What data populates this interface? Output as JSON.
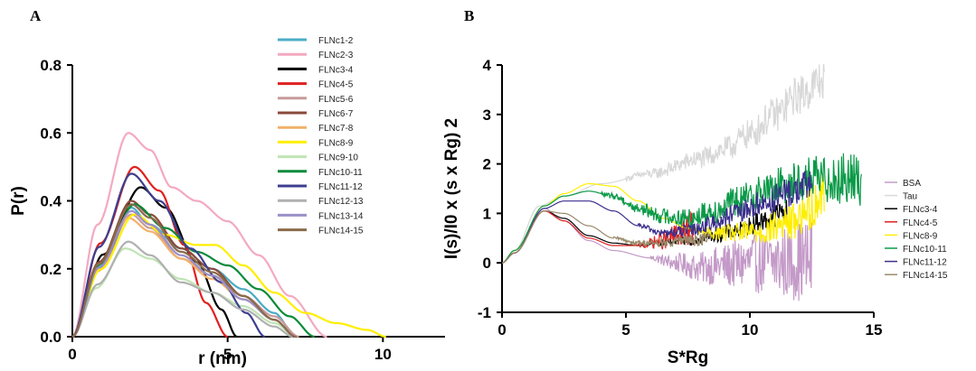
{
  "panels": {
    "a_label": "A",
    "b_label": "B"
  },
  "chart_data": [
    {
      "type": "line",
      "panel": "A",
      "xlabel": "r (nm)",
      "ylabel": "P(r)",
      "xlim": [
        0,
        12
      ],
      "ylim": [
        0,
        0.8
      ],
      "xticks": [
        0,
        5,
        10
      ],
      "xtick_labels": [
        "0",
        "5",
        "10"
      ],
      "yticks": [
        0,
        0.2,
        0.4,
        0.6,
        0.8
      ],
      "ytick_labels": [
        "0.0",
        "0.2",
        "0.4",
        "0.6",
        "0.8"
      ],
      "legend_position": "top-right",
      "grid": false,
      "series": [
        {
          "name": "FLNc1-2",
          "color": "#4bacc6",
          "peak_x": 1.9,
          "peak_y": 0.38,
          "points": [
            [
              2.5,
              0.33
            ],
            [
              3.5,
              0.26
            ],
            [
              4.5,
              0.2
            ],
            [
              5.5,
              0.14
            ],
            [
              6.5,
              0.07
            ],
            [
              7.2,
              0.0
            ]
          ]
        },
        {
          "name": "FLNc2-3",
          "color": "#f4a9c0",
          "peak_x": 1.8,
          "peak_y": 0.6,
          "points": [
            [
              2.5,
              0.55
            ],
            [
              3.2,
              0.44
            ],
            [
              4.0,
              0.4
            ],
            [
              5.0,
              0.34
            ],
            [
              6.0,
              0.24
            ],
            [
              7.0,
              0.12
            ],
            [
              8.2,
              0.0
            ]
          ]
        },
        {
          "name": "FLNc3-4",
          "color": "#000000",
          "peak_x": 2.2,
          "peak_y": 0.44,
          "points": [
            [
              3.0,
              0.38
            ],
            [
              4.0,
              0.22
            ],
            [
              4.8,
              0.08
            ],
            [
              5.3,
              0.0
            ]
          ]
        },
        {
          "name": "FLNc4-5",
          "color": "#e02020",
          "peak_x": 2.0,
          "peak_y": 0.5,
          "points": [
            [
              2.8,
              0.43
            ],
            [
              3.6,
              0.27
            ],
            [
              4.3,
              0.1
            ],
            [
              5.0,
              0.0
            ]
          ]
        },
        {
          "name": "FLNc5-6",
          "color": "#c89a9a",
          "peak_x": 1.9,
          "peak_y": 0.36,
          "points": [
            [
              2.5,
              0.32
            ],
            [
              3.5,
              0.23
            ],
            [
              4.5,
              0.18
            ],
            [
              5.5,
              0.12
            ],
            [
              6.5,
              0.06
            ],
            [
              7.3,
              0.0
            ]
          ]
        },
        {
          "name": "FLNc6-7",
          "color": "#8b4a3a",
          "peak_x": 1.9,
          "peak_y": 0.4,
          "points": [
            [
              2.5,
              0.36
            ],
            [
              3.5,
              0.26
            ],
            [
              4.5,
              0.2
            ],
            [
              5.5,
              0.12
            ],
            [
              6.5,
              0.05
            ],
            [
              7.2,
              0.0
            ]
          ]
        },
        {
          "name": "FLNc7-8",
          "color": "#f2b16a",
          "peak_x": 1.8,
          "peak_y": 0.35,
          "points": [
            [
              2.5,
              0.31
            ],
            [
              3.5,
              0.23
            ],
            [
              4.5,
              0.17
            ],
            [
              5.5,
              0.11
            ],
            [
              6.5,
              0.05
            ],
            [
              7.2,
              0.0
            ]
          ]
        },
        {
          "name": "FLNc8-9",
          "color": "#ffee00",
          "peak_x": 2.0,
          "peak_y": 0.36,
          "points": [
            [
              3.0,
              0.3
            ],
            [
              4.0,
              0.27
            ],
            [
              4.6,
              0.27
            ],
            [
              5.5,
              0.21
            ],
            [
              6.5,
              0.13
            ],
            [
              7.5,
              0.07
            ],
            [
              8.5,
              0.04
            ],
            [
              9.5,
              0.02
            ],
            [
              10.1,
              0.0
            ]
          ]
        },
        {
          "name": "FLNc9-10",
          "color": "#bfe4b4",
          "peak_x": 1.7,
          "peak_y": 0.26,
          "points": [
            [
              2.5,
              0.23
            ],
            [
              3.5,
              0.17
            ],
            [
              4.5,
              0.13
            ],
            [
              5.5,
              0.09
            ],
            [
              6.5,
              0.04
            ],
            [
              7.2,
              0.0
            ]
          ]
        },
        {
          "name": "FLNc10-11",
          "color": "#0a8a3a",
          "peak_x": 2.0,
          "peak_y": 0.39,
          "points": [
            [
              3.0,
              0.32
            ],
            [
              4.0,
              0.25
            ],
            [
              5.0,
              0.21
            ],
            [
              6.0,
              0.14
            ],
            [
              7.0,
              0.06
            ],
            [
              7.8,
              0.0
            ]
          ]
        },
        {
          "name": "FLNc11-12",
          "color": "#3d3f8f",
          "peak_x": 1.9,
          "peak_y": 0.48,
          "points": [
            [
              2.8,
              0.4
            ],
            [
              3.8,
              0.26
            ],
            [
              4.8,
              0.16
            ],
            [
              5.6,
              0.07
            ],
            [
              6.2,
              0.0
            ]
          ]
        },
        {
          "name": "FLNc12-13",
          "color": "#b0b0b0",
          "peak_x": 1.8,
          "peak_y": 0.28,
          "points": [
            [
              2.5,
              0.24
            ],
            [
              3.5,
              0.16
            ],
            [
              4.5,
              0.13
            ],
            [
              5.5,
              0.08
            ],
            [
              6.5,
              0.03
            ],
            [
              7.1,
              0.0
            ]
          ]
        },
        {
          "name": "FLNc13-14",
          "color": "#9a8fc8",
          "peak_x": 1.9,
          "peak_y": 0.37,
          "points": [
            [
              2.5,
              0.33
            ],
            [
              3.5,
              0.24
            ],
            [
              4.5,
              0.18
            ],
            [
              5.5,
              0.11
            ],
            [
              6.5,
              0.05
            ],
            [
              7.2,
              0.0
            ]
          ]
        },
        {
          "name": "FLNc14-15",
          "color": "#8a6b4a",
          "peak_x": 1.9,
          "peak_y": 0.39,
          "points": [
            [
              2.5,
              0.35
            ],
            [
              3.5,
              0.25
            ],
            [
              4.5,
              0.19
            ],
            [
              5.5,
              0.12
            ],
            [
              6.5,
              0.05
            ],
            [
              7.2,
              0.0
            ]
          ]
        }
      ]
    },
    {
      "type": "line",
      "panel": "B",
      "xlabel": "S*Rg",
      "ylabel": "I(s)/I0 x (s x Rg) 2",
      "xlim": [
        0,
        15
      ],
      "ylim": [
        -1,
        4
      ],
      "xticks": [
        0,
        5,
        10,
        15
      ],
      "xtick_labels": [
        "0",
        "5",
        "10",
        "15"
      ],
      "yticks": [
        -1,
        0,
        1,
        2,
        3,
        4
      ],
      "ytick_labels": [
        "-1",
        "0",
        "1",
        "2",
        "3",
        "4"
      ],
      "legend_position": "right",
      "grid": false,
      "series": [
        {
          "name": "BSA",
          "color": "#c49ac8",
          "points": [
            [
              0.5,
              0.2
            ],
            [
              1.7,
              1.1
            ],
            [
              2.5,
              0.85
            ],
            [
              3.5,
              0.45
            ],
            [
              4.5,
              0.25
            ],
            [
              6,
              0.1
            ],
            [
              7,
              0.0
            ],
            [
              8,
              -0.1
            ],
            [
              9,
              -0.05
            ],
            [
              10,
              0.0
            ],
            [
              11,
              0.0
            ],
            [
              12,
              0.05
            ],
            [
              12.5,
              0.0
            ]
          ],
          "noise_from": 6.0,
          "noise_amp": [
            0.05,
            0.9
          ]
        },
        {
          "name": "Tau",
          "color": "#d8d8d8",
          "points": [
            [
              0.5,
              0.25
            ],
            [
              1.5,
              1.15
            ],
            [
              2.5,
              1.35
            ],
            [
              4,
              1.6
            ],
            [
              6,
              1.8
            ],
            [
              8,
              2.1
            ],
            [
              9,
              2.3
            ],
            [
              10,
              2.6
            ],
            [
              11,
              3.0
            ],
            [
              12,
              3.4
            ],
            [
              13,
              3.7
            ]
          ],
          "noise_from": 5.0,
          "noise_amp": [
            0.05,
            0.45
          ]
        },
        {
          "name": "FLNc3-4",
          "color": "#000000",
          "points": [
            [
              0.5,
              0.2
            ],
            [
              1.7,
              1.05
            ],
            [
              2.5,
              0.9
            ],
            [
              3.5,
              0.55
            ],
            [
              4.5,
              0.4
            ],
            [
              5.5,
              0.35
            ],
            [
              6.5,
              0.4
            ],
            [
              7.5,
              0.45
            ],
            [
              8.5,
              0.55
            ],
            [
              9.5,
              0.65
            ],
            [
              10.5,
              0.85
            ],
            [
              11.5,
              1.05
            ]
          ],
          "noise_from": 6.0,
          "noise_amp": [
            0.04,
            0.25
          ]
        },
        {
          "name": "FLNc4-5",
          "color": "#e02020",
          "points": [
            [
              0.5,
              0.2
            ],
            [
              1.7,
              1.05
            ],
            [
              2.5,
              0.85
            ],
            [
              3.5,
              0.5
            ],
            [
              4.5,
              0.35
            ],
            [
              5.5,
              0.35
            ],
            [
              6.5,
              0.45
            ],
            [
              7.3,
              0.6
            ],
            [
              7.7,
              0.7
            ]
          ],
          "noise_from": 5.5,
          "noise_amp": [
            0.04,
            0.35
          ]
        },
        {
          "name": "FLNc8-9",
          "color": "#ffee00",
          "points": [
            [
              0.5,
              0.25
            ],
            [
              1.7,
              1.15
            ],
            [
              2.5,
              1.4
            ],
            [
              3.5,
              1.6
            ],
            [
              4.5,
              1.55
            ],
            [
              5.5,
              1.25
            ],
            [
              6.5,
              0.9
            ],
            [
              7.5,
              0.7
            ],
            [
              8.5,
              0.6
            ],
            [
              9.5,
              0.6
            ],
            [
              10.5,
              0.65
            ],
            [
              11.5,
              0.8
            ],
            [
              12.5,
              1.1
            ],
            [
              13.0,
              1.5
            ]
          ],
          "noise_from": 7.5,
          "noise_amp": [
            0.05,
            0.5
          ]
        },
        {
          "name": "FLNc10-11",
          "color": "#0a9a48",
          "points": [
            [
              0.5,
              0.25
            ],
            [
              1.7,
              1.15
            ],
            [
              2.5,
              1.35
            ],
            [
              3.5,
              1.45
            ],
            [
              4.5,
              1.35
            ],
            [
              5.5,
              1.1
            ],
            [
              6.5,
              0.95
            ],
            [
              7.5,
              0.9
            ],
            [
              8.5,
              1.05
            ],
            [
              9.5,
              1.25
            ],
            [
              10.5,
              1.45
            ],
            [
              11.5,
              1.6
            ],
            [
              12.5,
              1.7
            ],
            [
              13.5,
              1.7
            ],
            [
              14.5,
              1.7
            ]
          ],
          "noise_from": 4.0,
          "noise_amp": [
            0.04,
            0.55
          ]
        },
        {
          "name": "FLNc11-12",
          "color": "#3b2f8c",
          "points": [
            [
              0.5,
              0.2
            ],
            [
              1.7,
              1.1
            ],
            [
              2.5,
              1.25
            ],
            [
              3.5,
              1.25
            ],
            [
              4.5,
              1.05
            ],
            [
              5.5,
              0.75
            ],
            [
              6.5,
              0.6
            ],
            [
              7.5,
              0.65
            ],
            [
              8.5,
              0.8
            ],
            [
              9.5,
              1.0
            ],
            [
              10.5,
              1.2
            ],
            [
              11.5,
              1.4
            ],
            [
              12.5,
              1.6
            ]
          ],
          "noise_from": 5.5,
          "noise_amp": [
            0.04,
            0.35
          ]
        },
        {
          "name": "FLNc14-15",
          "color": "#9a8a6a",
          "points": [
            [
              0.5,
              0.2
            ],
            [
              1.7,
              1.05
            ],
            [
              2.5,
              1.0
            ],
            [
              3.5,
              0.75
            ],
            [
              4.5,
              0.5
            ],
            [
              5.5,
              0.4
            ],
            [
              6.5,
              0.4
            ],
            [
              7.5,
              0.45
            ],
            [
              8.5,
              0.5
            ]
          ],
          "noise_from": 4.5,
          "noise_amp": [
            0.03,
            0.15
          ]
        }
      ]
    }
  ]
}
